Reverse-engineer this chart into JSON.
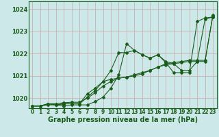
{
  "background_color": "#cce8e8",
  "grid_color": "#aac8c8",
  "line_color": "#1a5c1a",
  "xlabel": "Graphe pression niveau de la mer (hPa)",
  "xlabel_fontsize": 7,
  "ylim": [
    1019.55,
    1024.35
  ],
  "xlim": [
    -0.5,
    23.5
  ],
  "yticks": [
    1020,
    1021,
    1022,
    1023,
    1024
  ],
  "xticks": [
    0,
    1,
    2,
    3,
    4,
    5,
    6,
    7,
    8,
    9,
    10,
    11,
    12,
    13,
    14,
    15,
    16,
    17,
    18,
    19,
    20,
    21,
    22,
    23
  ],
  "series": [
    [
      1019.65,
      1019.65,
      1019.75,
      1019.7,
      1019.65,
      1019.7,
      1019.7,
      1019.7,
      1019.85,
      1020.05,
      1020.45,
      1021.05,
      1022.45,
      1022.15,
      1021.95,
      1021.8,
      1021.95,
      1021.6,
      1021.15,
      1021.15,
      1021.15,
      1023.45,
      1023.6,
      1023.65
    ],
    [
      1019.65,
      1019.65,
      1019.75,
      1019.7,
      1019.75,
      1019.75,
      1019.75,
      1020.2,
      1020.45,
      1020.75,
      1021.25,
      1022.05,
      1022.05,
      1022.15,
      1021.95,
      1021.8,
      1021.95,
      1021.65,
      1021.55,
      1021.25,
      1021.25,
      1021.65,
      1023.55,
      1023.65
    ],
    [
      1019.65,
      1019.65,
      1019.75,
      1019.75,
      1019.8,
      1019.82,
      1019.82,
      1020.0,
      1020.25,
      1020.55,
      1020.75,
      1020.9,
      1020.95,
      1021.05,
      1021.15,
      1021.25,
      1021.4,
      1021.5,
      1021.55,
      1021.6,
      1021.65,
      1021.65,
      1021.65,
      1023.75
    ],
    [
      1019.65,
      1019.65,
      1019.7,
      1019.7,
      1019.75,
      1019.75,
      1019.75,
      1020.05,
      1020.35,
      1020.75,
      1020.85,
      1020.9,
      1020.95,
      1021.0,
      1021.1,
      1021.25,
      1021.4,
      1021.55,
      1021.6,
      1021.65,
      1021.7,
      1021.7,
      1021.7,
      1023.7
    ]
  ]
}
